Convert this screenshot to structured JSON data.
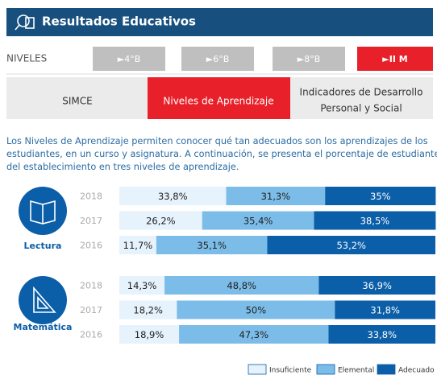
{
  "header": {
    "title": "Resultados Educativos"
  },
  "levels": {
    "label": "NIVELES",
    "buttons": [
      "►4°B",
      "►6°B",
      "►8°B",
      "►II M"
    ]
  },
  "tabs": [
    "SIMCE",
    "Niveles de Aprendizaje",
    [
      "Indicadores de Desarrollo",
      "Personal y Social"
    ]
  ],
  "description": [
    "Los Niveles de Aprendizaje permiten conocer qué tan adecuados son los aprendizajes de los",
    "estudiantes, en un curso y asignatura. A continuación, se presenta el porcentaje de estudiantes",
    "del establecimiento en tres niveles de aprendizaje."
  ],
  "chart_data": [
    {
      "type": "stacked-barh",
      "title": "Lectura",
      "categories": [
        "2018",
        "2017",
        "2016"
      ],
      "series": [
        {
          "name": "Insuficiente",
          "color": "#e6f2fc",
          "values": [
            33.8,
            26.2,
            11.7
          ],
          "value_labels": [
            "33,8%",
            "26,2%",
            "11,7%"
          ]
        },
        {
          "name": "Elemental",
          "color": "#7cbce8",
          "values": [
            31.3,
            35.4,
            35.1
          ],
          "value_labels": [
            "31,3%",
            "35,4%",
            "35,1%"
          ]
        },
        {
          "name": "Adecuado",
          "color": "#0b5ea8",
          "values": [
            35,
            38.5,
            53.2
          ],
          "value_labels": [
            "35%",
            "38,5%",
            "53,2%"
          ]
        }
      ]
    },
    {
      "type": "stacked-barh",
      "title": "Matemática",
      "categories": [
        "2018",
        "2017",
        "2016"
      ],
      "series": [
        {
          "name": "Insuficiente",
          "color": "#e6f2fc",
          "values": [
            14.3,
            18.2,
            18.9
          ],
          "value_labels": [
            "14,3%",
            "18,2%",
            "18,9%"
          ]
        },
        {
          "name": "Elemental",
          "color": "#7cbce8",
          "values": [
            48.8,
            50,
            47.3
          ],
          "value_labels": [
            "48,8%",
            "50%",
            "47,3%"
          ]
        },
        {
          "name": "Adecuado",
          "color": "#0b5ea8",
          "values": [
            36.9,
            31.8,
            33.8
          ],
          "value_labels": [
            "36,9%",
            "31,8%",
            "33,8%"
          ]
        }
      ]
    }
  ]
}
